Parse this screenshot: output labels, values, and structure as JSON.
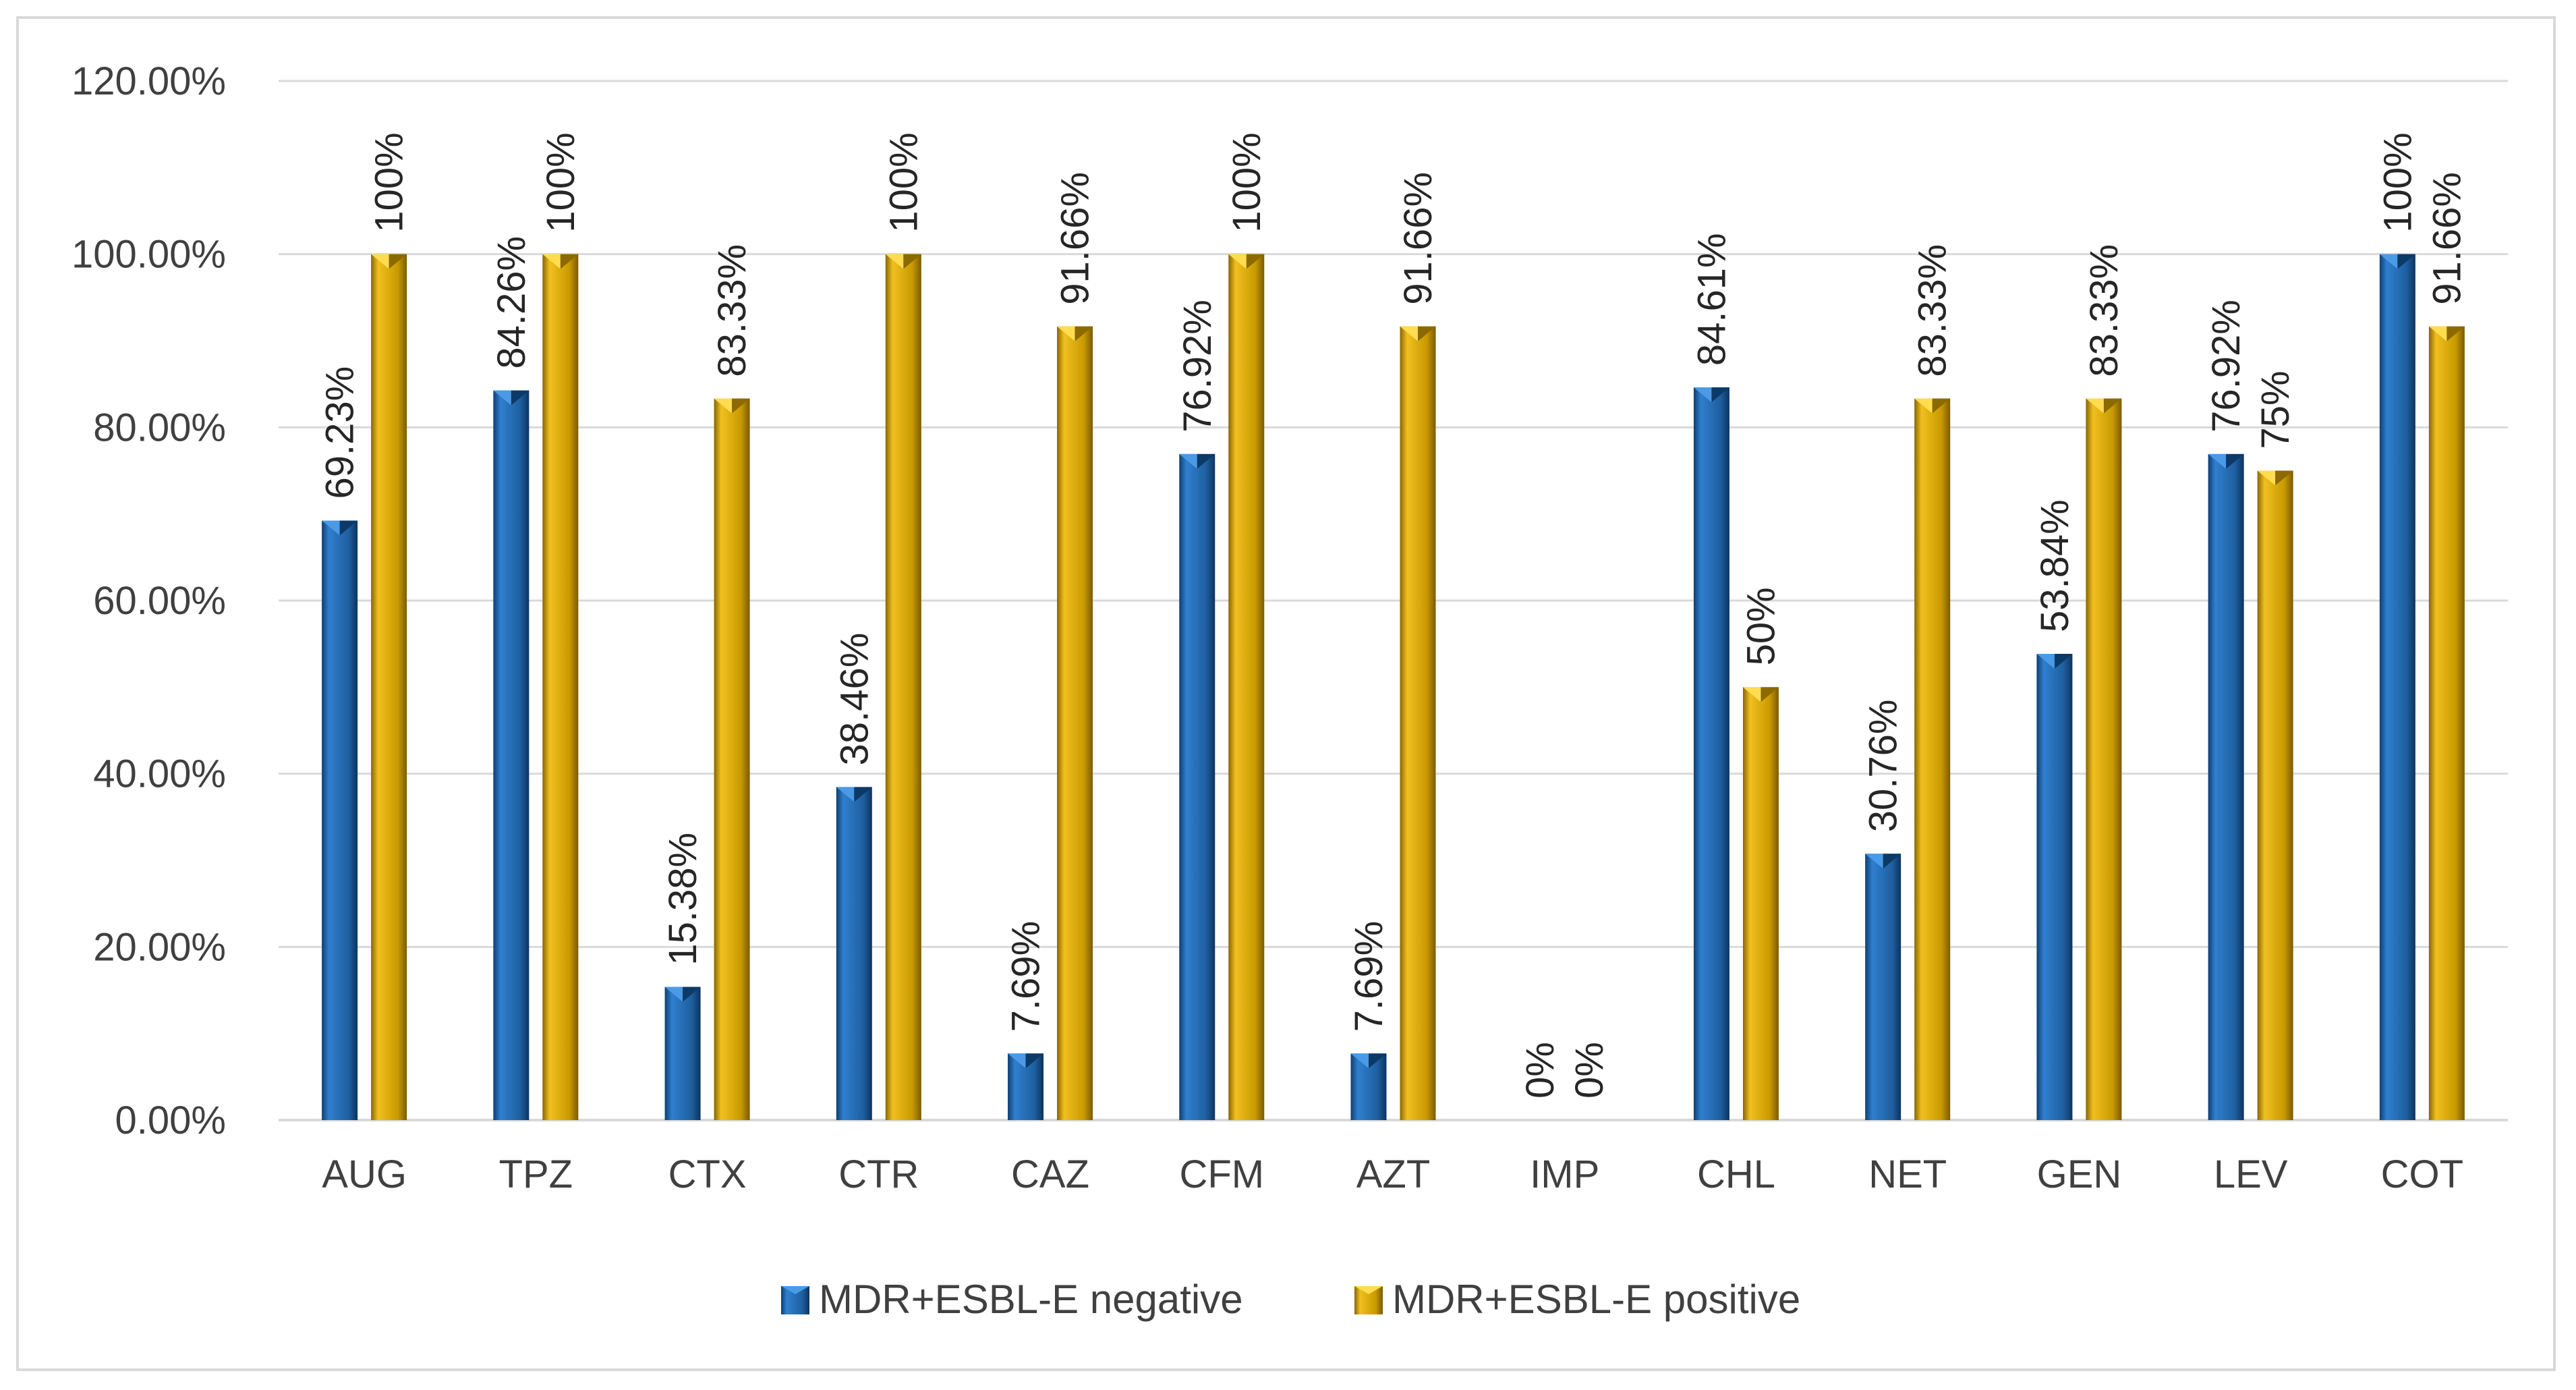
{
  "chart_data": {
    "type": "bar",
    "title": "",
    "xlabel": "",
    "ylabel": "",
    "ylim": [
      0,
      1.2
    ],
    "yticks": [
      "0.00%",
      "20.00%",
      "40.00%",
      "60.00%",
      "80.00%",
      "100.00%",
      "120.00%"
    ],
    "categories": [
      "AUG",
      "TPZ",
      "CTX",
      "CTR",
      "CAZ",
      "CFM",
      "AZT",
      "IMP",
      "CHL",
      "NET",
      "GEN",
      "LEV",
      "COT"
    ],
    "grid": true,
    "legend_position": "bottom",
    "series": [
      {
        "name": "MDR+ESBL-E negative",
        "color": "#1f5f9f",
        "values": [
          0.6923,
          0.8426,
          0.1538,
          0.3846,
          0.0769,
          0.7692,
          0.0769,
          0,
          0.8461,
          0.3076,
          0.5384,
          0.7692,
          1.0
        ],
        "labels": [
          "69.23%",
          "84.26%",
          "15.38%",
          "38.46%",
          "7.69%",
          "76.92%",
          "7.69%",
          "0%",
          "84.61%",
          "30.76%",
          "53.84%",
          "76.92%",
          "100%"
        ]
      },
      {
        "name": "MDR+ESBL-E positive",
        "color": "#c99a00",
        "values": [
          1.0,
          1.0,
          0.8333,
          1.0,
          0.9166,
          1.0,
          0.9166,
          0,
          0.5,
          0.8333,
          0.8333,
          0.75,
          0.9166
        ],
        "labels": [
          "100%",
          "100%",
          "83.33%",
          "100%",
          "91.66%",
          "100%",
          "91.66%",
          "0%",
          "50%",
          "83.33%",
          "83.33%",
          "75%",
          "91.66%"
        ]
      }
    ]
  }
}
